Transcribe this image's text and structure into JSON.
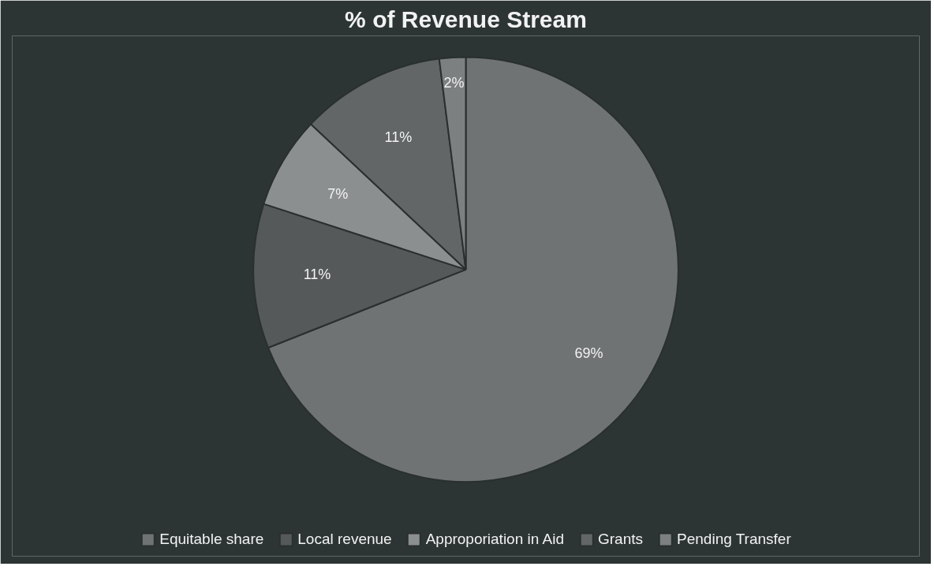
{
  "chart_data": {
    "type": "pie",
    "title": "% of Revenue Stream",
    "categories": [
      "Equitable share",
      "Local revenue",
      "Approporiation in Aid",
      "Grants",
      "Pending Transfer"
    ],
    "values": [
      69,
      11,
      7,
      11,
      2
    ],
    "value_labels": [
      "69%",
      "11%",
      "7%",
      "11%",
      "2%"
    ],
    "colors": [
      "#707373",
      "#555959",
      "#8c8f8f",
      "#626666",
      "#7d8080"
    ],
    "legend": "bottom"
  }
}
